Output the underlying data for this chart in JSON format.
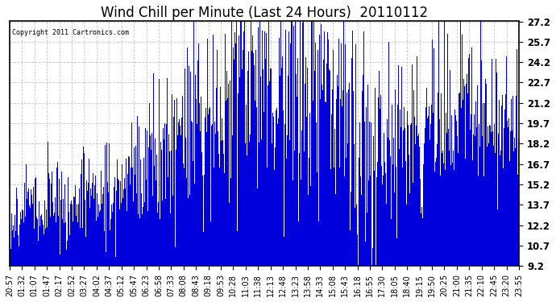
{
  "title": "Wind Chill per Minute (Last 24 Hours)  20110112",
  "copyright": "Copyright 2011 Cartronics.com",
  "ylim": [
    9.2,
    27.2
  ],
  "yticks": [
    9.2,
    10.7,
    12.2,
    13.7,
    15.2,
    16.7,
    18.2,
    19.7,
    21.2,
    22.7,
    24.2,
    25.7,
    27.2
  ],
  "x_tick_labels": [
    "20:57",
    "01:32",
    "01:07",
    "01:47",
    "02:17",
    "02:52",
    "03:27",
    "04:02",
    "04:37",
    "05:12",
    "05:47",
    "06:23",
    "06:58",
    "07:33",
    "08:08",
    "08:43",
    "09:18",
    "09:53",
    "10:28",
    "11:03",
    "11:38",
    "12:13",
    "12:48",
    "13:23",
    "13:58",
    "14:33",
    "15:08",
    "15:43",
    "16:18",
    "16:55",
    "17:30",
    "18:05",
    "18:40",
    "19:15",
    "19:50",
    "20:25",
    "21:00",
    "21:35",
    "22:10",
    "22:45",
    "23:20",
    "23:55"
  ],
  "bar_color": "#0000dd",
  "background_color": "#ffffff",
  "grid_color": "#bbbbbb",
  "title_fontsize": 12,
  "tick_fontsize": 7,
  "n_points": 1440,
  "seed": 12,
  "ymin": 9.2
}
